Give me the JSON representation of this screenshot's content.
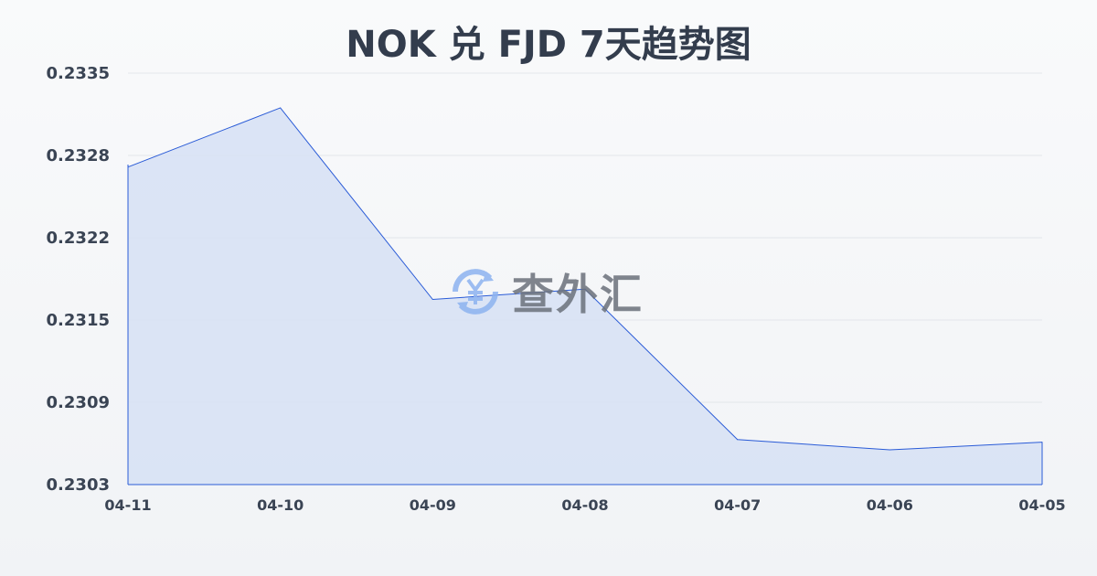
{
  "chart_data": {
    "type": "area",
    "title": "NOK 兑 FJD 7天趋势图",
    "xlabel": "",
    "ylabel": "",
    "categories": [
      "04-11",
      "04-10",
      "04-09",
      "04-08",
      "04-07",
      "04-06",
      "04-05"
    ],
    "series": [
      {
        "values": [
          0.23277,
          0.23323,
          0.23174,
          0.23182,
          0.23065,
          0.23057,
          0.23063
        ]
      }
    ],
    "ylim": [
      0.2303,
      0.2335
    ],
    "yticks": [
      "0.2335",
      "0.2328",
      "0.2322",
      "0.2315",
      "0.2309",
      "0.2303"
    ],
    "grid": true,
    "colors": {
      "line": "#2a5bd7",
      "fill": "#d6e0f5"
    }
  },
  "watermark": {
    "text": "查外汇",
    "icon": "yen-exchange-icon"
  }
}
